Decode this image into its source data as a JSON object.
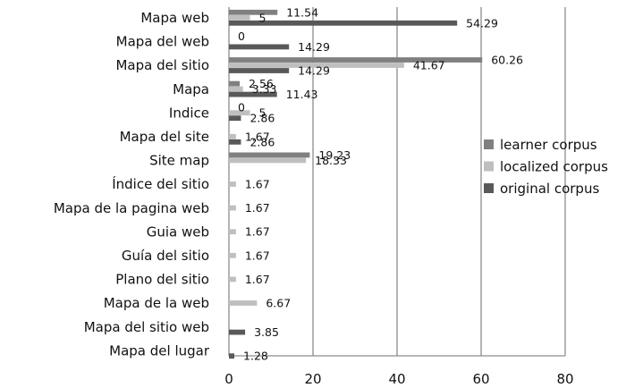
{
  "chart_data": {
    "type": "bar",
    "orientation": "horizontal",
    "categories": [
      "Mapa  web",
      "Mapa del web",
      "Mapa del sitio",
      "Mapa",
      "Indice",
      "Mapa del site",
      "Site map",
      "Índice del sitio",
      "Mapa de la pagina web",
      "Guia web",
      "Guía del sitio",
      "Plano del sitio",
      "Mapa de la web",
      "Mapa del sitio web",
      "Mapa del lugar"
    ],
    "series": [
      {
        "name": "learner corpus",
        "color": "#808080",
        "values": [
          11.54,
          0,
          60.26,
          2.56,
          0,
          null,
          19.23,
          null,
          null,
          null,
          null,
          null,
          null,
          null,
          null
        ],
        "labels": [
          "11.54",
          "0",
          "60.26",
          "2.56",
          "0",
          "",
          "19.23",
          "",
          "",
          "",
          "",
          "",
          "",
          "",
          ""
        ]
      },
      {
        "name": "localized corpus",
        "color": "#bfbfbf",
        "values": [
          5,
          null,
          41.67,
          3.33,
          5,
          1.67,
          18.33,
          1.67,
          1.67,
          1.67,
          1.67,
          1.67,
          6.67,
          null,
          null
        ],
        "labels": [
          "5",
          "",
          "41.67",
          "3.33",
          "5",
          "1.67",
          "18.33",
          "1.67",
          "1.67",
          "1.67",
          "1.67",
          "1.67",
          "6.67",
          "",
          ""
        ]
      },
      {
        "name": "original corpus",
        "color": "#595959",
        "values": [
          54.29,
          14.29,
          14.29,
          11.43,
          2.86,
          2.86,
          null,
          null,
          null,
          null,
          null,
          null,
          null,
          3.85,
          1.28
        ],
        "labels": [
          "54.29",
          "14.29",
          "14.29",
          "11.43",
          "2.86",
          "2.86",
          "",
          "",
          "",
          "",
          "",
          "",
          "",
          "3.85",
          "1.28"
        ]
      }
    ],
    "x_ticks": [
      "0",
      "20",
      "40",
      "60",
      "80"
    ],
    "xlim": [
      0,
      80
    ],
    "grid": "vertical",
    "legend_position": "right"
  }
}
